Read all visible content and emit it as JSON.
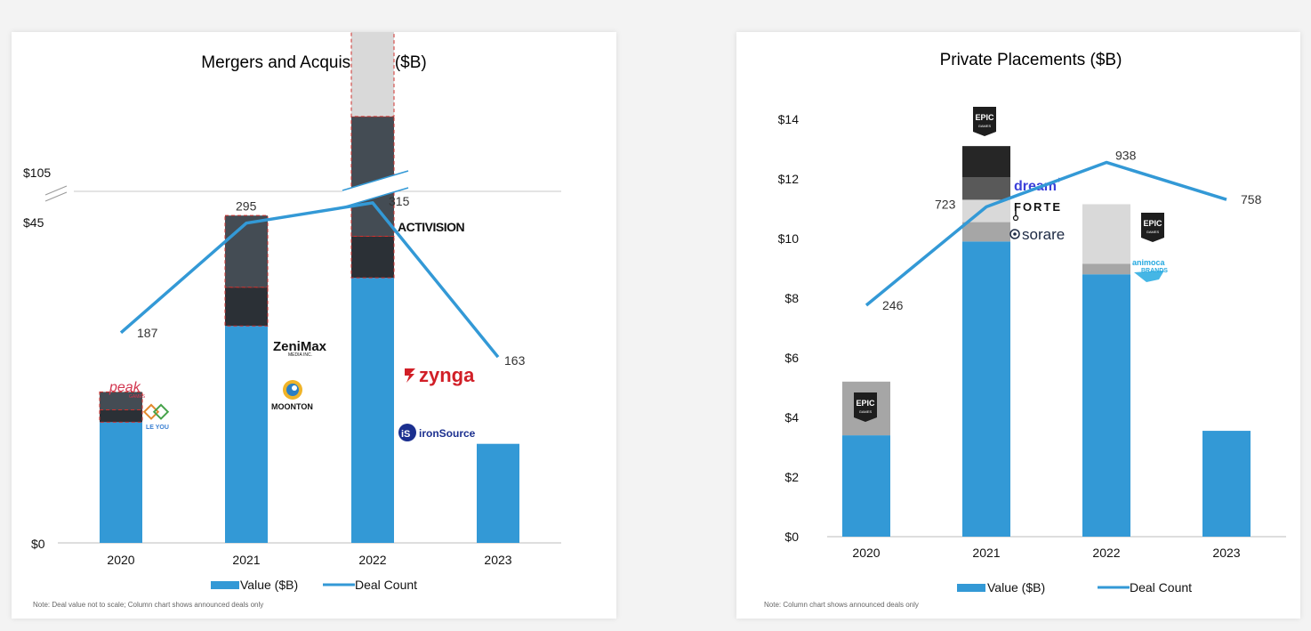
{
  "charts": {
    "ma": {
      "title": "Mergers and Acquisitions ($B)",
      "yticks": [
        "$105",
        "$45",
        "$0"
      ],
      "categories": [
        "2020",
        "2021",
        "2022",
        "2023"
      ],
      "deal_counts": [
        "187",
        "295",
        "315",
        "163"
      ],
      "legend": {
        "value": "Value ($B)",
        "count": "Deal Count"
      },
      "note": "Note: Deal value not to scale; Column chart shows announced deals only",
      "logos": {
        "peak": "peak",
        "peak_sub": "GAMES",
        "leyou": "LE YOU",
        "zenimax": "ZeniMax",
        "zenimax_sub": "MEDIA INC.",
        "moonton": "MOONTON",
        "activision": "ACTIVISION",
        "zynga": "zynga",
        "ironsource": "ironSource"
      }
    },
    "pp": {
      "title": "Private Placements ($B)",
      "yticks": [
        "$14",
        "$12",
        "$10",
        "$8",
        "$6",
        "$4",
        "$2",
        "$0"
      ],
      "categories": [
        "2020",
        "2021",
        "2022",
        "2023"
      ],
      "deal_counts": [
        "246",
        "723",
        "938",
        "758"
      ],
      "legend": {
        "value": "Value ($B)",
        "count": "Deal Count"
      },
      "note": "Note: Column chart shows announced deals only",
      "logos": {
        "epic": "EPIC",
        "epic_sub": "GAMES",
        "dream": "dream",
        "forte": "FORTE",
        "sorare": "sorare",
        "animoca": "animoca",
        "animoca_sub": "BRANDS"
      }
    }
  },
  "colors": {
    "value": "#3399d6",
    "line": "#3399d6",
    "gray_light": "#d9d9d9",
    "gray_mid": "#a6a6a6",
    "gray_dark": "#595959",
    "slate": "#444c54",
    "charcoal": "#2b3036",
    "black": "#262626",
    "dash_red": "#d0312d"
  },
  "chart_data": [
    {
      "type": "bar",
      "title": "Mergers and Acquisitions ($B)",
      "categories": [
        "2020",
        "2021",
        "2022",
        "2023"
      ],
      "series": [
        {
          "name": "Value ($B)",
          "kind": "stacked-bar",
          "values": [
            12.8,
            23.0,
            28.1,
            10.5
          ]
        },
        {
          "name": "Deal Count",
          "kind": "line",
          "values": [
            187,
            295,
            315,
            163
          ]
        }
      ],
      "stack_segments": {
        "2020": [
          12.8,
          1.3,
          1.9
        ],
        "2021": [
          23.0,
          4.1,
          7.6
        ],
        "2022": [
          28.1,
          4.4,
          12.7,
          28.0
        ]
      },
      "y_ticks_printed": [
        "$0",
        "$45",
        "$105"
      ],
      "broken_axis": true,
      "legend": "bottom-center"
    },
    {
      "type": "bar",
      "title": "Private Placements ($B)",
      "categories": [
        "2020",
        "2021",
        "2022",
        "2023"
      ],
      "series": [
        {
          "name": "Value ($B)",
          "kind": "stacked-bar",
          "values": [
            3.4,
            9.9,
            8.8,
            3.55
          ]
        },
        {
          "name": "Deal Count",
          "kind": "line",
          "values": [
            246,
            723,
            938,
            758
          ]
        }
      ],
      "stack_segments": {
        "2020": [
          3.4,
          1.8
        ],
        "2021": [
          9.9,
          0.65,
          0.75,
          0.75,
          1.05
        ],
        "2022": [
          8.8,
          0.35,
          2.0
        ]
      },
      "ylim": [
        0,
        14
      ],
      "y_ticks_printed": [
        "$0",
        "$2",
        "$4",
        "$6",
        "$8",
        "$10",
        "$12",
        "$14"
      ],
      "legend": "bottom-center"
    }
  ]
}
